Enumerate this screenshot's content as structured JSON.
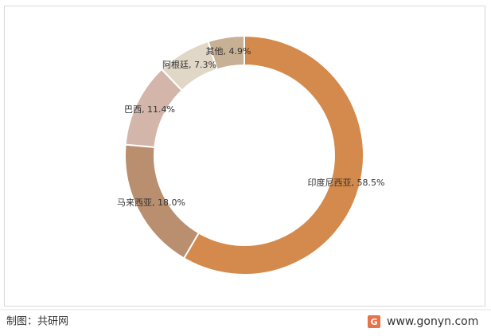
{
  "chart_data": {
    "type": "donut",
    "values": [
      58.5,
      18.0,
      11.4,
      7.3,
      4.9
    ],
    "value_labels": [
      "印度尼西亚, 58.5%",
      "马来西亚, 18.0%",
      "巴西, 11.4%",
      "阿根廷, 7.3%",
      "其他, 4.9%"
    ],
    "colors": [
      "#d48a4c",
      "#b98f6f",
      "#d3b5aa",
      "#e1d7c7",
      "#c7b093"
    ]
  },
  "footer": {
    "source": "制图：共研网",
    "website": "www.gonyn.com"
  }
}
